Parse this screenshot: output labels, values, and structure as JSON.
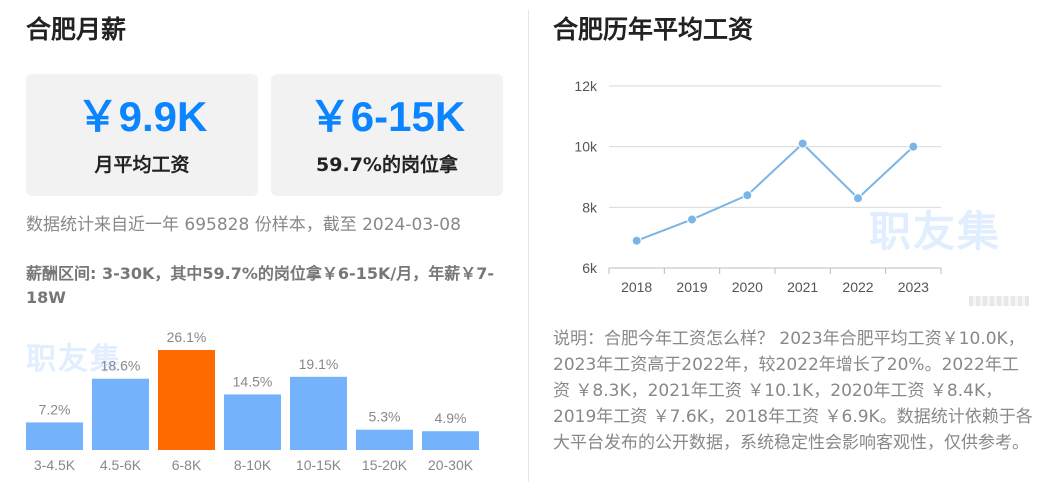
{
  "left": {
    "title": "合肥月薪",
    "cards": [
      {
        "value": "￥9.9K",
        "caption": "月平均工资"
      },
      {
        "value": "￥6-15K",
        "caption": "59.7%的岗位拿"
      }
    ],
    "source_text": "数据统计来自近一年 695828 份样本，截至 2024-03-08",
    "range_text": "薪酬区间: 3-30K，其中59.7%的岗位拿￥6-15K/月，年薪￥7-18W",
    "watermark": "职友集"
  },
  "right": {
    "title": "合肥历年平均工资",
    "watermark": "职友集",
    "note": "说明：合肥今年工资怎么样？ 2023年合肥平均工资￥10.0K，2023年工资高于2022年，较2022年增长了20%。2022年工资 ￥8.3K，2021年工资 ￥10.1K，2020年工资 ￥8.4K，2019年工资 ￥7.6K，2018年工资 ￥6.9K。数据统计依赖于各大平台发布的公开数据，系统稳定性会影响客观性，仅供参考。"
  },
  "colors": {
    "accent": "#0a84ff",
    "bar": "#74b3fb",
    "bar_highlight": "#ff6a00",
    "line": "#7ab5e6"
  },
  "chart_data": [
    {
      "type": "bar",
      "categories": [
        "3-4.5K",
        "4.5-6K",
        "6-8K",
        "8-10K",
        "10-15K",
        "15-20K",
        "20-30K"
      ],
      "values": [
        7.2,
        18.6,
        26.1,
        14.5,
        19.1,
        5.3,
        4.9
      ],
      "value_labels": [
        "7.2%",
        "18.6%",
        "26.1%",
        "14.5%",
        "19.1%",
        "5.3%",
        "4.9%"
      ],
      "highlight_index": 2,
      "ylim": [
        0,
        26.1
      ]
    },
    {
      "type": "line",
      "x": [
        "2018",
        "2019",
        "2020",
        "2021",
        "2022",
        "2023"
      ],
      "values": [
        6.9,
        7.6,
        8.4,
        10.1,
        8.3,
        10.0
      ],
      "yticks": [
        6,
        8,
        10,
        12
      ],
      "ytick_labels": [
        "6k",
        "8k",
        "10k",
        "12k"
      ],
      "ylim": [
        6,
        12
      ],
      "grid": true
    }
  ]
}
